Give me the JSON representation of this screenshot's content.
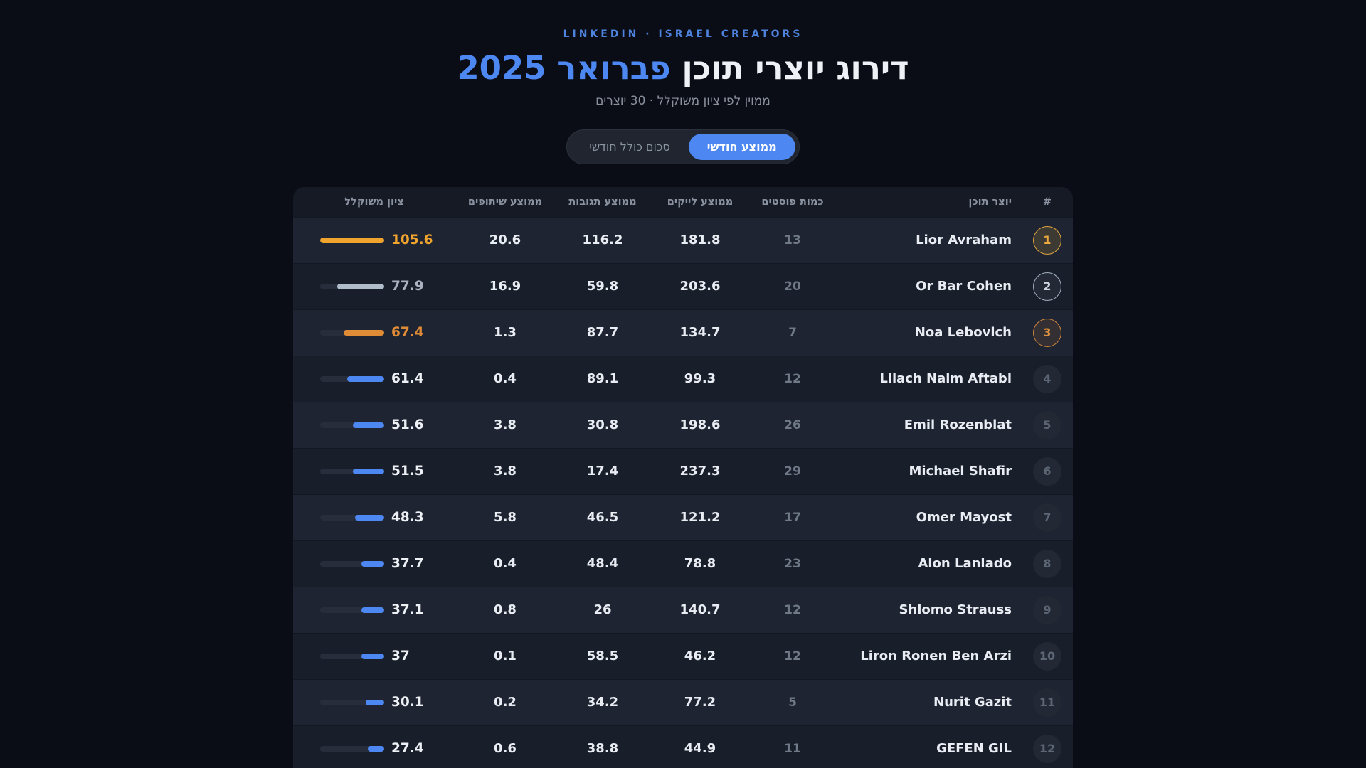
{
  "header": {
    "eyebrow": "LINKEDIN · ISRAEL CREATORS",
    "title_main": "דירוג יוצרי תוכן",
    "title_accent": "פברואר 2025",
    "subtitle": "ממוין לפי ציון משוקלל · 30 יוצרים"
  },
  "toggle": {
    "options": [
      {
        "label": "ממוצע חודשי",
        "active": true
      },
      {
        "label": "סכום כולל חודשי",
        "active": false
      }
    ]
  },
  "table": {
    "columns": {
      "rank": "#",
      "creator": "יוצר תוכן",
      "posts": "כמות פוסטים",
      "likes": "ממוצע לייקים",
      "comments": "ממוצע תגובות",
      "shares": "ממוצע שיתופים",
      "score": "ציון משוקלל"
    },
    "rows": [
      {
        "rank": "1",
        "name": "Lior Avraham",
        "posts": "13",
        "likes": "181.8",
        "comments": "116.2",
        "shares": "20.6",
        "score": "105.6",
        "tier": "gold"
      },
      {
        "rank": "2",
        "name": "Or Bar Cohen",
        "posts": "20",
        "likes": "203.6",
        "comments": "59.8",
        "shares": "16.9",
        "score": "77.9",
        "tier": "silver"
      },
      {
        "rank": "3",
        "name": "Noa Lebovich",
        "posts": "7",
        "likes": "134.7",
        "comments": "87.7",
        "shares": "1.3",
        "score": "67.4",
        "tier": "bronze"
      },
      {
        "rank": "4",
        "name": "Lilach Naim Aftabi",
        "posts": "12",
        "likes": "99.3",
        "comments": "89.1",
        "shares": "0.4",
        "score": "61.4",
        "tier": "default"
      },
      {
        "rank": "5",
        "name": "Emil Rozenblat",
        "posts": "26",
        "likes": "198.6",
        "comments": "30.8",
        "shares": "3.8",
        "score": "51.6",
        "tier": "default"
      },
      {
        "rank": "6",
        "name": "Michael Shafir",
        "posts": "29",
        "likes": "237.3",
        "comments": "17.4",
        "shares": "3.8",
        "score": "51.5",
        "tier": "default"
      },
      {
        "rank": "7",
        "name": "Omer Mayost",
        "posts": "17",
        "likes": "121.2",
        "comments": "46.5",
        "shares": "5.8",
        "score": "48.3",
        "tier": "default"
      },
      {
        "rank": "8",
        "name": "Alon Laniado",
        "posts": "23",
        "likes": "78.8",
        "comments": "48.4",
        "shares": "0.4",
        "score": "37.7",
        "tier": "default"
      },
      {
        "rank": "9",
        "name": "Shlomo Strauss",
        "posts": "12",
        "likes": "140.7",
        "comments": "26",
        "shares": "0.8",
        "score": "37.1",
        "tier": "default"
      },
      {
        "rank": "10",
        "name": "Liron Ronen Ben Arzi",
        "posts": "12",
        "likes": "46.2",
        "comments": "58.5",
        "shares": "0.1",
        "score": "37",
        "tier": "default"
      },
      {
        "rank": "11",
        "name": "Nurit Gazit",
        "posts": "5",
        "likes": "77.2",
        "comments": "34.2",
        "shares": "0.2",
        "score": "30.1",
        "tier": "default"
      },
      {
        "rank": "12",
        "name": "GEFEN GIL",
        "posts": "11",
        "likes": "44.9",
        "comments": "38.8",
        "shares": "0.6",
        "score": "27.4",
        "tier": "default"
      }
    ]
  },
  "colors": {
    "accent_blue": "#4d87f2",
    "gold": "#f0a42e",
    "silver": "#aebdc9",
    "bronze": "#e08b35"
  }
}
